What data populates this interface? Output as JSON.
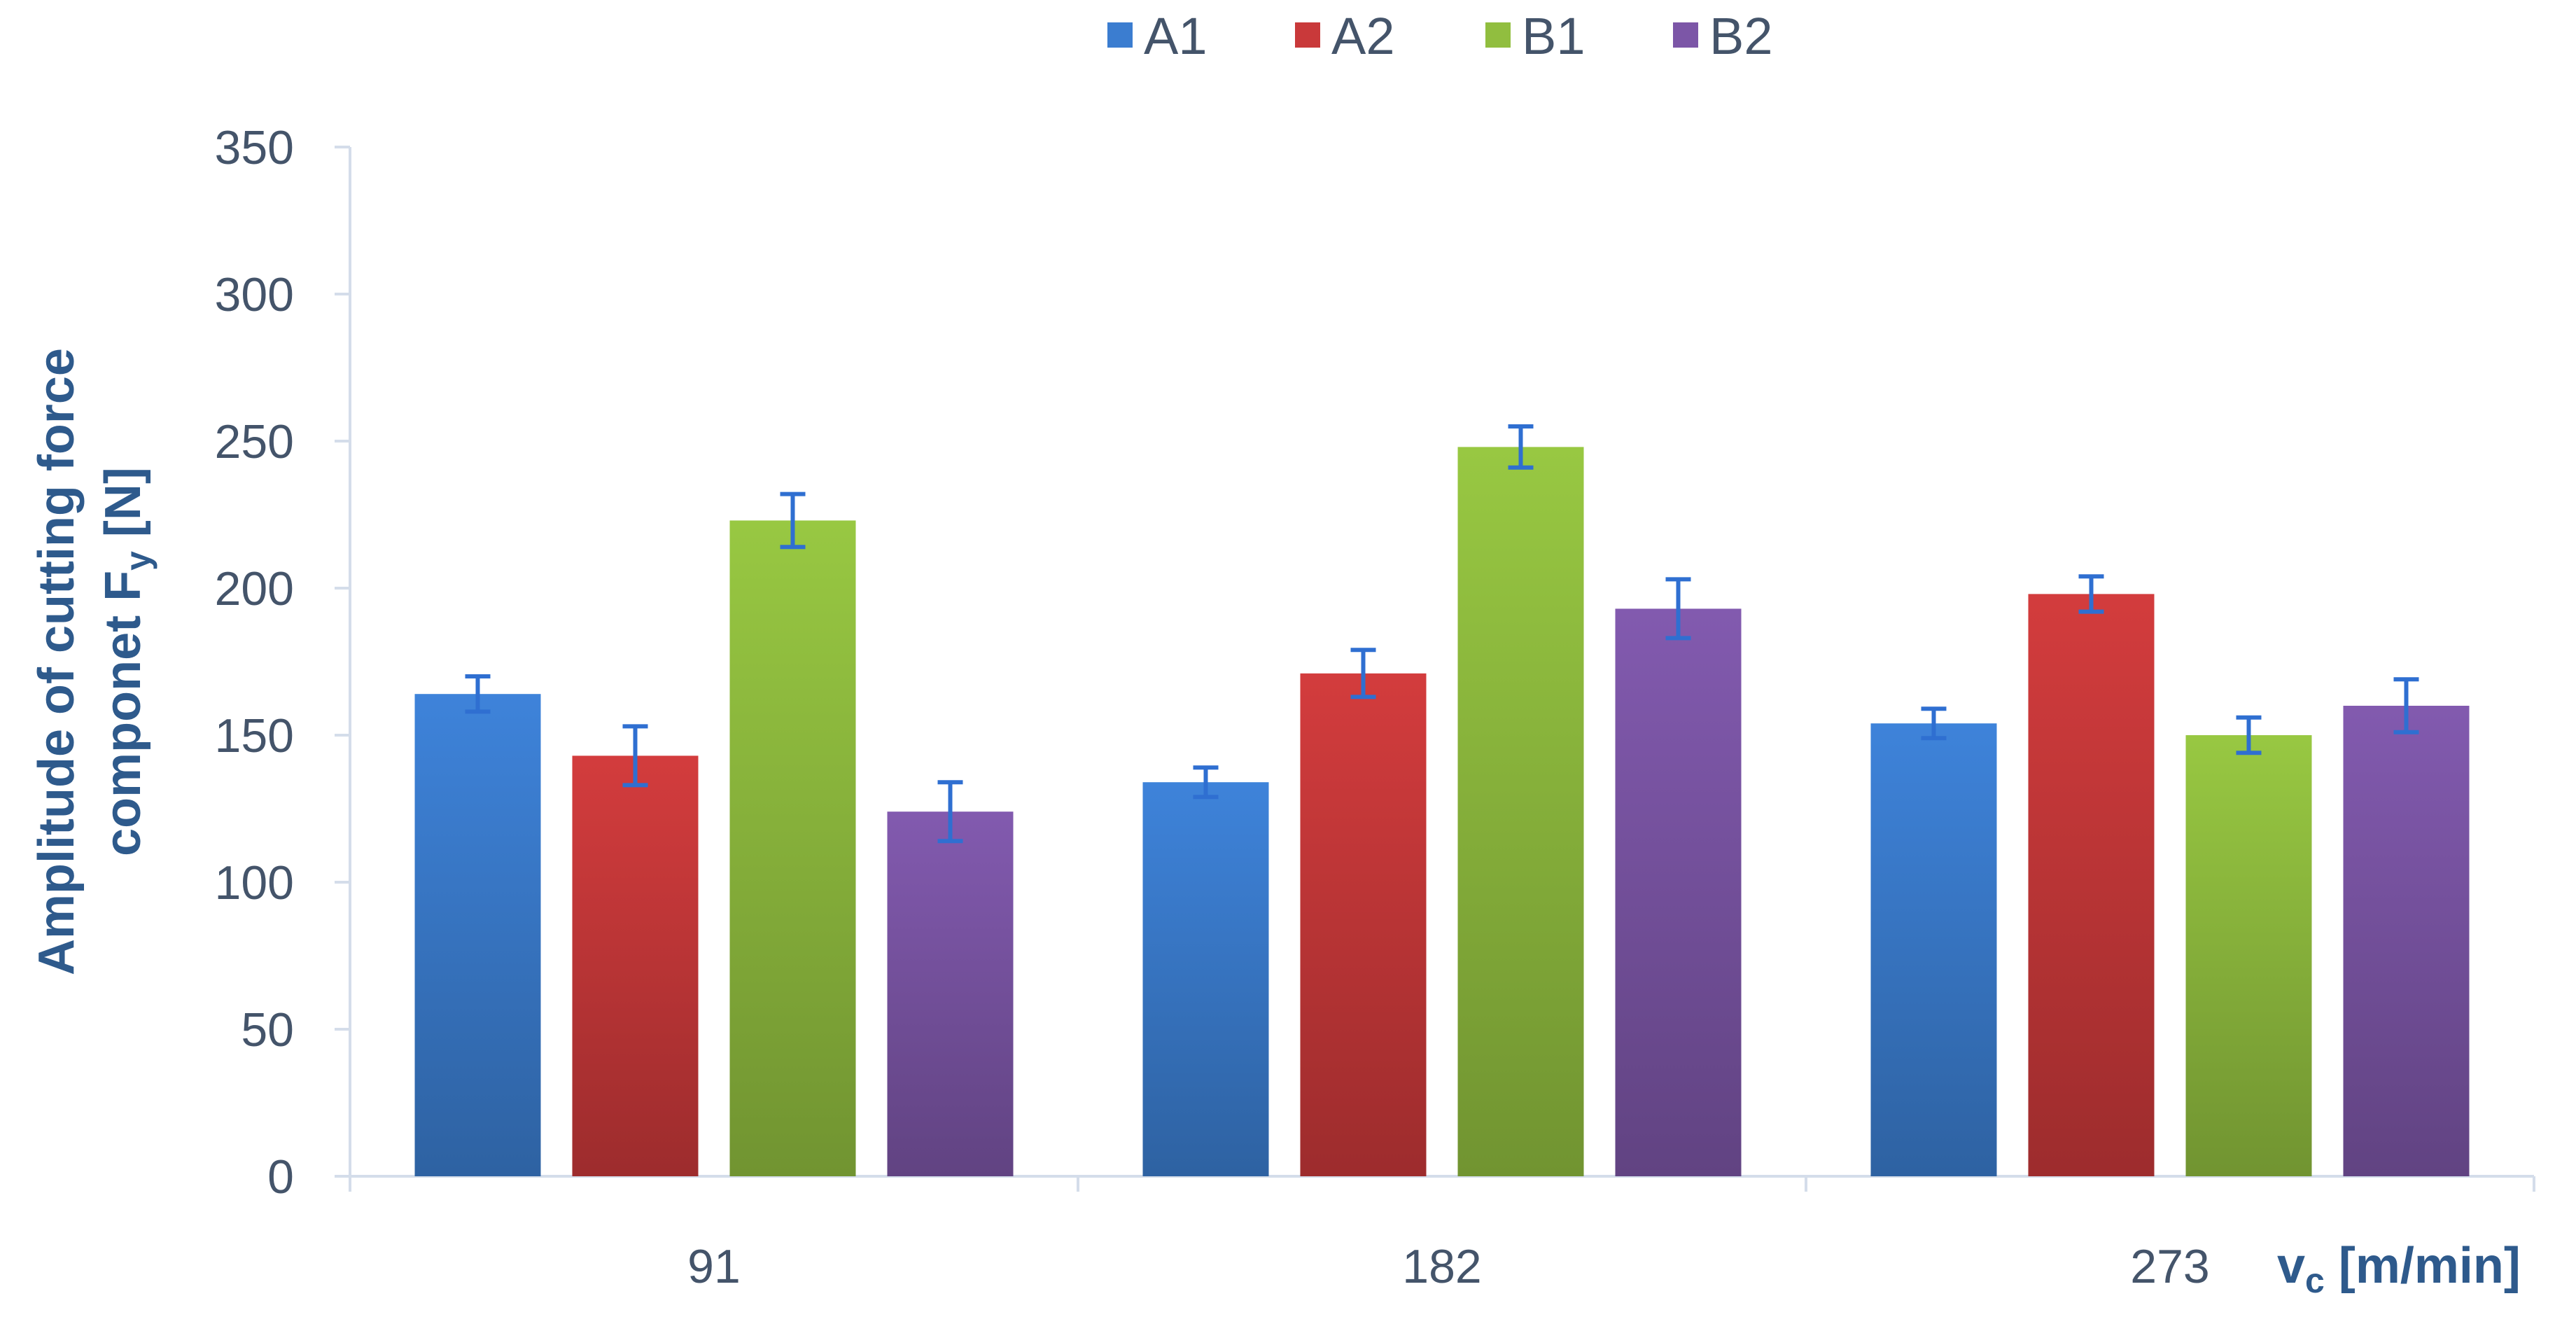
{
  "chart_data": {
    "type": "bar",
    "categories": [
      "91",
      "182",
      "273"
    ],
    "series": [
      {
        "name": "A1",
        "color": "#3B7DD0",
        "values": [
          164,
          134,
          154
        ],
        "errors": [
          6,
          5,
          5
        ]
      },
      {
        "name": "A2",
        "color": "#C9393A",
        "values": [
          143,
          171,
          198
        ],
        "errors": [
          10,
          8,
          6
        ]
      },
      {
        "name": "B1",
        "color": "#91BE3F",
        "values": [
          223,
          248,
          150
        ],
        "errors": [
          9,
          7,
          6
        ]
      },
      {
        "name": "B2",
        "color": "#7C56A7",
        "values": [
          124,
          193,
          160
        ],
        "errors": [
          10,
          10,
          9
        ]
      }
    ],
    "ylim": [
      0,
      350
    ],
    "yticks": [
      0,
      50,
      100,
      150,
      200,
      250,
      300,
      350
    ],
    "ylabel_line1": "Amplitude of cutting force",
    "ylabel_line2": "componet F",
    "ylabel_sub": "y",
    "ylabel_unit": " [N]",
    "xlabel_main": "v",
    "xlabel_sub": "c",
    "xlabel_unit": " [m/min]",
    "error_bar_color": "#2F6FD1",
    "axis_color": "#D4DDEA",
    "legend_position": "top",
    "grid": false
  }
}
